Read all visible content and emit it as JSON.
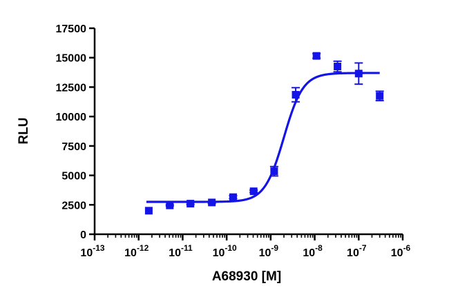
{
  "chart_data": {
    "type": "scatter",
    "title": "",
    "xlabel": "A68930 [M]",
    "ylabel": "RLU",
    "x_scale": "log10",
    "xlim": [
      1e-13,
      1e-06
    ],
    "ylim": [
      0,
      17500
    ],
    "x_tick_labels": [
      {
        "base": "10",
        "exp": "-13"
      },
      {
        "base": "10",
        "exp": "-12"
      },
      {
        "base": "10",
        "exp": "-11"
      },
      {
        "base": "10",
        "exp": "-10"
      },
      {
        "base": "10",
        "exp": "-9"
      },
      {
        "base": "10",
        "exp": "-8"
      },
      {
        "base": "10",
        "exp": "-7"
      },
      {
        "base": "10",
        "exp": "-6"
      }
    ],
    "y_tick_labels": [
      "0",
      "2500",
      "5000",
      "7500",
      "10000",
      "12500",
      "15000",
      "17500"
    ],
    "y_tick_values": [
      0,
      2500,
      5000,
      7500,
      10000,
      12500,
      15000,
      17500
    ],
    "color": "#1414e6",
    "grid": false,
    "legend": "none",
    "series": [
      {
        "points": [
          {
            "x": 1.7e-12,
            "y": 2000,
            "err": 0
          },
          {
            "x": 5.1e-12,
            "y": 2450,
            "err": 60
          },
          {
            "x": 1.5e-11,
            "y": 2600,
            "err": 80
          },
          {
            "x": 4.6e-11,
            "y": 2700,
            "err": 80
          },
          {
            "x": 1.4e-10,
            "y": 3150,
            "err": 120
          },
          {
            "x": 4.1e-10,
            "y": 3650,
            "err": 100
          },
          {
            "x": 1.2e-09,
            "y": 5350,
            "err": 400
          },
          {
            "x": 3.7e-09,
            "y": 11850,
            "err": 600
          },
          {
            "x": 1.1e-08,
            "y": 15150,
            "err": 200
          },
          {
            "x": 3.3e-08,
            "y": 14250,
            "err": 450
          },
          {
            "x": 1e-07,
            "y": 13650,
            "err": 900
          },
          {
            "x": 3e-07,
            "y": 11750,
            "err": 400
          }
        ],
        "fit": {
          "model": "sigmoidal dose-response",
          "bottom": 2750,
          "top": 13700,
          "log_ec50": -8.7,
          "hill_slope": 2.0,
          "x_range": [
            1.5e-12,
            3e-07
          ]
        }
      }
    ]
  }
}
